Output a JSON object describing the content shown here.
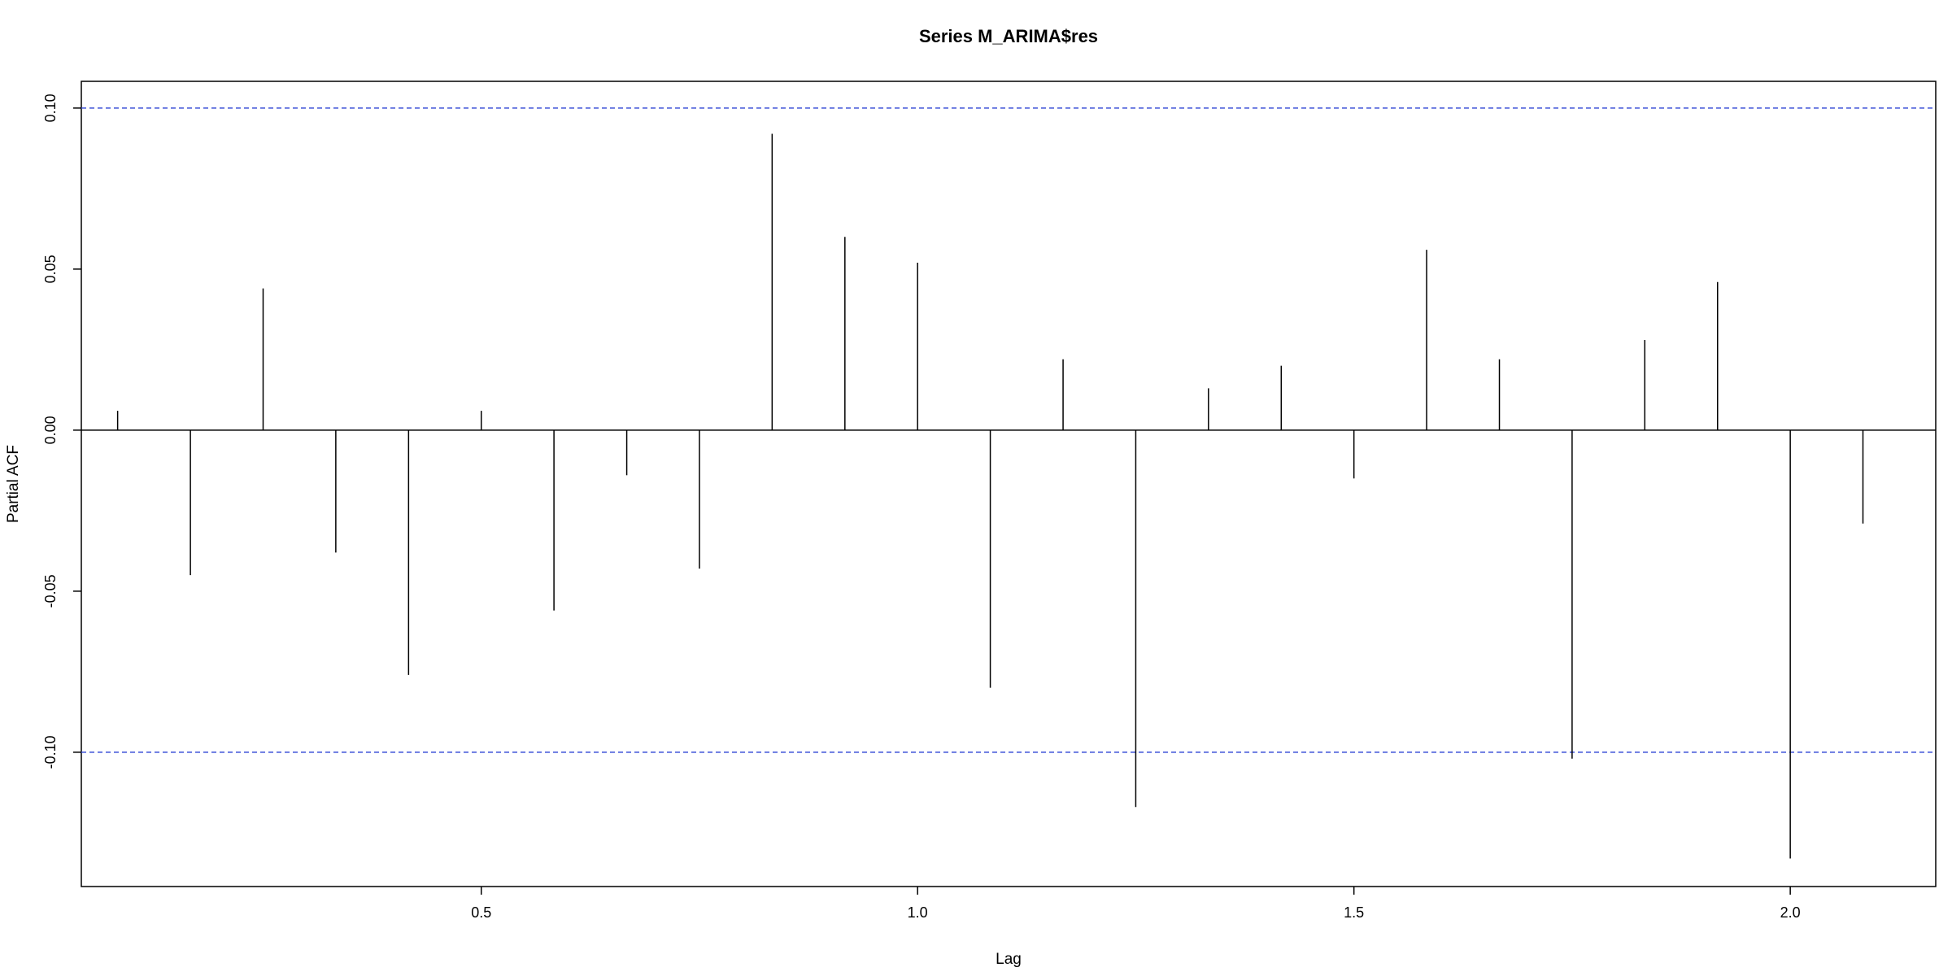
{
  "chart_data": {
    "type": "bar",
    "subtype": "partial-acf-spikes",
    "title": "Series  M_ARIMA$res",
    "xlabel": "Lag",
    "ylabel": "Partial ACF",
    "xlim": [
      0.0417,
      2.1667
    ],
    "ylim": [
      -0.1417,
      0.1083
    ],
    "x_ticks": [
      0.5,
      1.0,
      1.5,
      2.0
    ],
    "x_tick_labels": [
      "0.5",
      "1.0",
      "1.5",
      "2.0"
    ],
    "y_ticks": [
      -0.1,
      -0.05,
      0.0,
      0.05,
      0.1
    ],
    "y_tick_labels": [
      "-0.10",
      "-0.05",
      "0.00",
      "0.05",
      "0.10"
    ],
    "confidence_bounds": [
      0.1,
      -0.1
    ],
    "zero_line": 0,
    "grid": false,
    "colors": {
      "bars": "#000000",
      "bounds": "#3b4fd8",
      "axes": "#000000"
    },
    "x": [
      0.0833,
      0.1667,
      0.25,
      0.3333,
      0.4167,
      0.5,
      0.5833,
      0.6667,
      0.75,
      0.8333,
      0.9167,
      1.0,
      1.0833,
      1.1667,
      1.25,
      1.3333,
      1.4167,
      1.5,
      1.5833,
      1.6667,
      1.75,
      1.8333,
      1.9167,
      2.0,
      2.0833
    ],
    "values": [
      0.006,
      -0.045,
      0.044,
      -0.038,
      -0.076,
      0.006,
      -0.056,
      -0.014,
      -0.043,
      0.092,
      0.06,
      0.052,
      -0.08,
      0.022,
      -0.117,
      0.013,
      0.02,
      -0.015,
      0.056,
      0.022,
      -0.102,
      0.028,
      0.046,
      -0.133,
      -0.029
    ]
  }
}
